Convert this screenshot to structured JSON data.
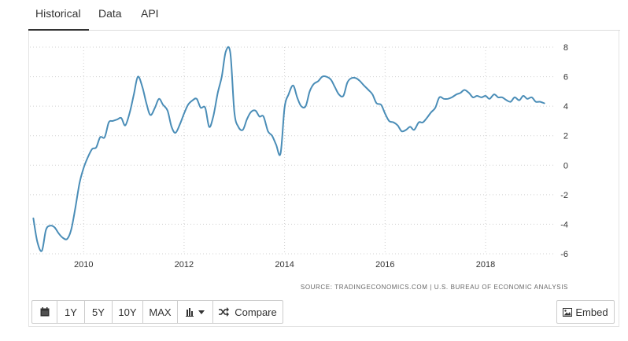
{
  "tabs": [
    {
      "label": "Historical",
      "active": true
    },
    {
      "label": "Data",
      "active": false
    },
    {
      "label": "API",
      "active": false
    }
  ],
  "toolbar": {
    "calendar_icon": "calendar-icon",
    "range_buttons": [
      "1Y",
      "5Y",
      "10Y",
      "MAX"
    ],
    "chart_type_icon": "bar-chart-icon",
    "compare_icon": "shuffle-icon",
    "compare_label": "Compare",
    "embed_icon": "image-icon",
    "embed_label": "Embed"
  },
  "source_text": "SOURCE: TRADINGECONOMICS.COM | U.S. BUREAU OF ECONOMIC ANALYSIS",
  "colors": {
    "line": "#4a8db7",
    "grid": "#d0d0d0"
  },
  "chart_data": {
    "type": "line",
    "title": "",
    "xlabel": "",
    "ylabel": "",
    "xlim": [
      2008.9,
      2019.3
    ],
    "ylim": [
      -6,
      8
    ],
    "x_ticks": [
      "2010",
      "2012",
      "2014",
      "2016",
      "2018"
    ],
    "y_ticks": [
      "8",
      "6",
      "4",
      "2",
      "0",
      "-2",
      "-4",
      "-6"
    ],
    "grid": true,
    "series": [
      {
        "x": [
          2009.0,
          2009.08,
          2009.17,
          2009.25,
          2009.33,
          2009.42,
          2009.5,
          2009.58,
          2009.67,
          2009.75,
          2009.83,
          2009.92,
          2010.0,
          2010.08,
          2010.17,
          2010.25,
          2010.33,
          2010.42,
          2010.5,
          2010.58,
          2010.67,
          2010.75,
          2010.83,
          2010.92,
          2011.0,
          2011.08,
          2011.17,
          2011.25,
          2011.33,
          2011.42,
          2011.5,
          2011.58,
          2011.67,
          2011.75,
          2011.83,
          2011.92,
          2012.0,
          2012.08,
          2012.17,
          2012.25,
          2012.33,
          2012.42,
          2012.5,
          2012.58,
          2012.67,
          2012.75,
          2012.83,
          2012.92,
          2013.0,
          2013.08,
          2013.17,
          2013.25,
          2013.33,
          2013.42,
          2013.5,
          2013.58,
          2013.67,
          2013.75,
          2013.83,
          2013.92,
          2014.0,
          2014.08,
          2014.17,
          2014.25,
          2014.33,
          2014.42,
          2014.5,
          2014.58,
          2014.67,
          2014.75,
          2014.83,
          2014.92,
          2015.0,
          2015.08,
          2015.17,
          2015.25,
          2015.33,
          2015.42,
          2015.5,
          2015.58,
          2015.67,
          2015.75,
          2015.83,
          2015.92,
          2016.0,
          2016.08,
          2016.17,
          2016.25,
          2016.33,
          2016.42,
          2016.5,
          2016.58,
          2016.67,
          2016.75,
          2016.83,
          2016.92,
          2017.0,
          2017.08,
          2017.17,
          2017.25,
          2017.33,
          2017.42,
          2017.5,
          2017.58,
          2017.67,
          2017.75,
          2017.83,
          2017.92,
          2018.0,
          2018.08,
          2018.17,
          2018.25,
          2018.33,
          2018.42,
          2018.5,
          2018.58,
          2018.67,
          2018.75,
          2018.83,
          2018.92,
          2019.0,
          2019.08,
          2019.17
        ],
        "y": [
          -3.6,
          -5.2,
          -5.8,
          -4.4,
          -4.1,
          -4.2,
          -4.6,
          -4.9,
          -5.0,
          -4.4,
          -3.0,
          -1.2,
          -0.2,
          0.5,
          1.1,
          1.2,
          1.9,
          1.9,
          2.9,
          3.0,
          3.1,
          3.2,
          2.7,
          3.6,
          4.8,
          6.0,
          5.3,
          4.2,
          3.4,
          3.9,
          4.5,
          4.1,
          3.7,
          2.6,
          2.2,
          2.8,
          3.5,
          4.1,
          4.4,
          4.5,
          3.9,
          3.9,
          2.6,
          3.3,
          4.9,
          6.0,
          7.7,
          7.6,
          3.6,
          2.6,
          2.4,
          3.1,
          3.6,
          3.7,
          3.3,
          3.3,
          2.3,
          2.0,
          1.4,
          0.8,
          3.9,
          4.8,
          5.4,
          4.6,
          4.0,
          4.0,
          5.0,
          5.5,
          5.7,
          6.0,
          6.0,
          5.8,
          5.3,
          4.8,
          4.7,
          5.6,
          5.9,
          5.9,
          5.7,
          5.4,
          5.1,
          4.8,
          4.2,
          4.1,
          3.5,
          3.0,
          2.9,
          2.7,
          2.3,
          2.4,
          2.6,
          2.4,
          2.9,
          2.9,
          3.2,
          3.6,
          3.9,
          4.6,
          4.5,
          4.5,
          4.6,
          4.8,
          4.9,
          5.1,
          4.9,
          4.6,
          4.7,
          4.6,
          4.7,
          4.5,
          4.8,
          4.6,
          4.6,
          4.4,
          4.3,
          4.6,
          4.4,
          4.7,
          4.5,
          4.6,
          4.3,
          4.3,
          4.2
        ]
      }
    ]
  }
}
